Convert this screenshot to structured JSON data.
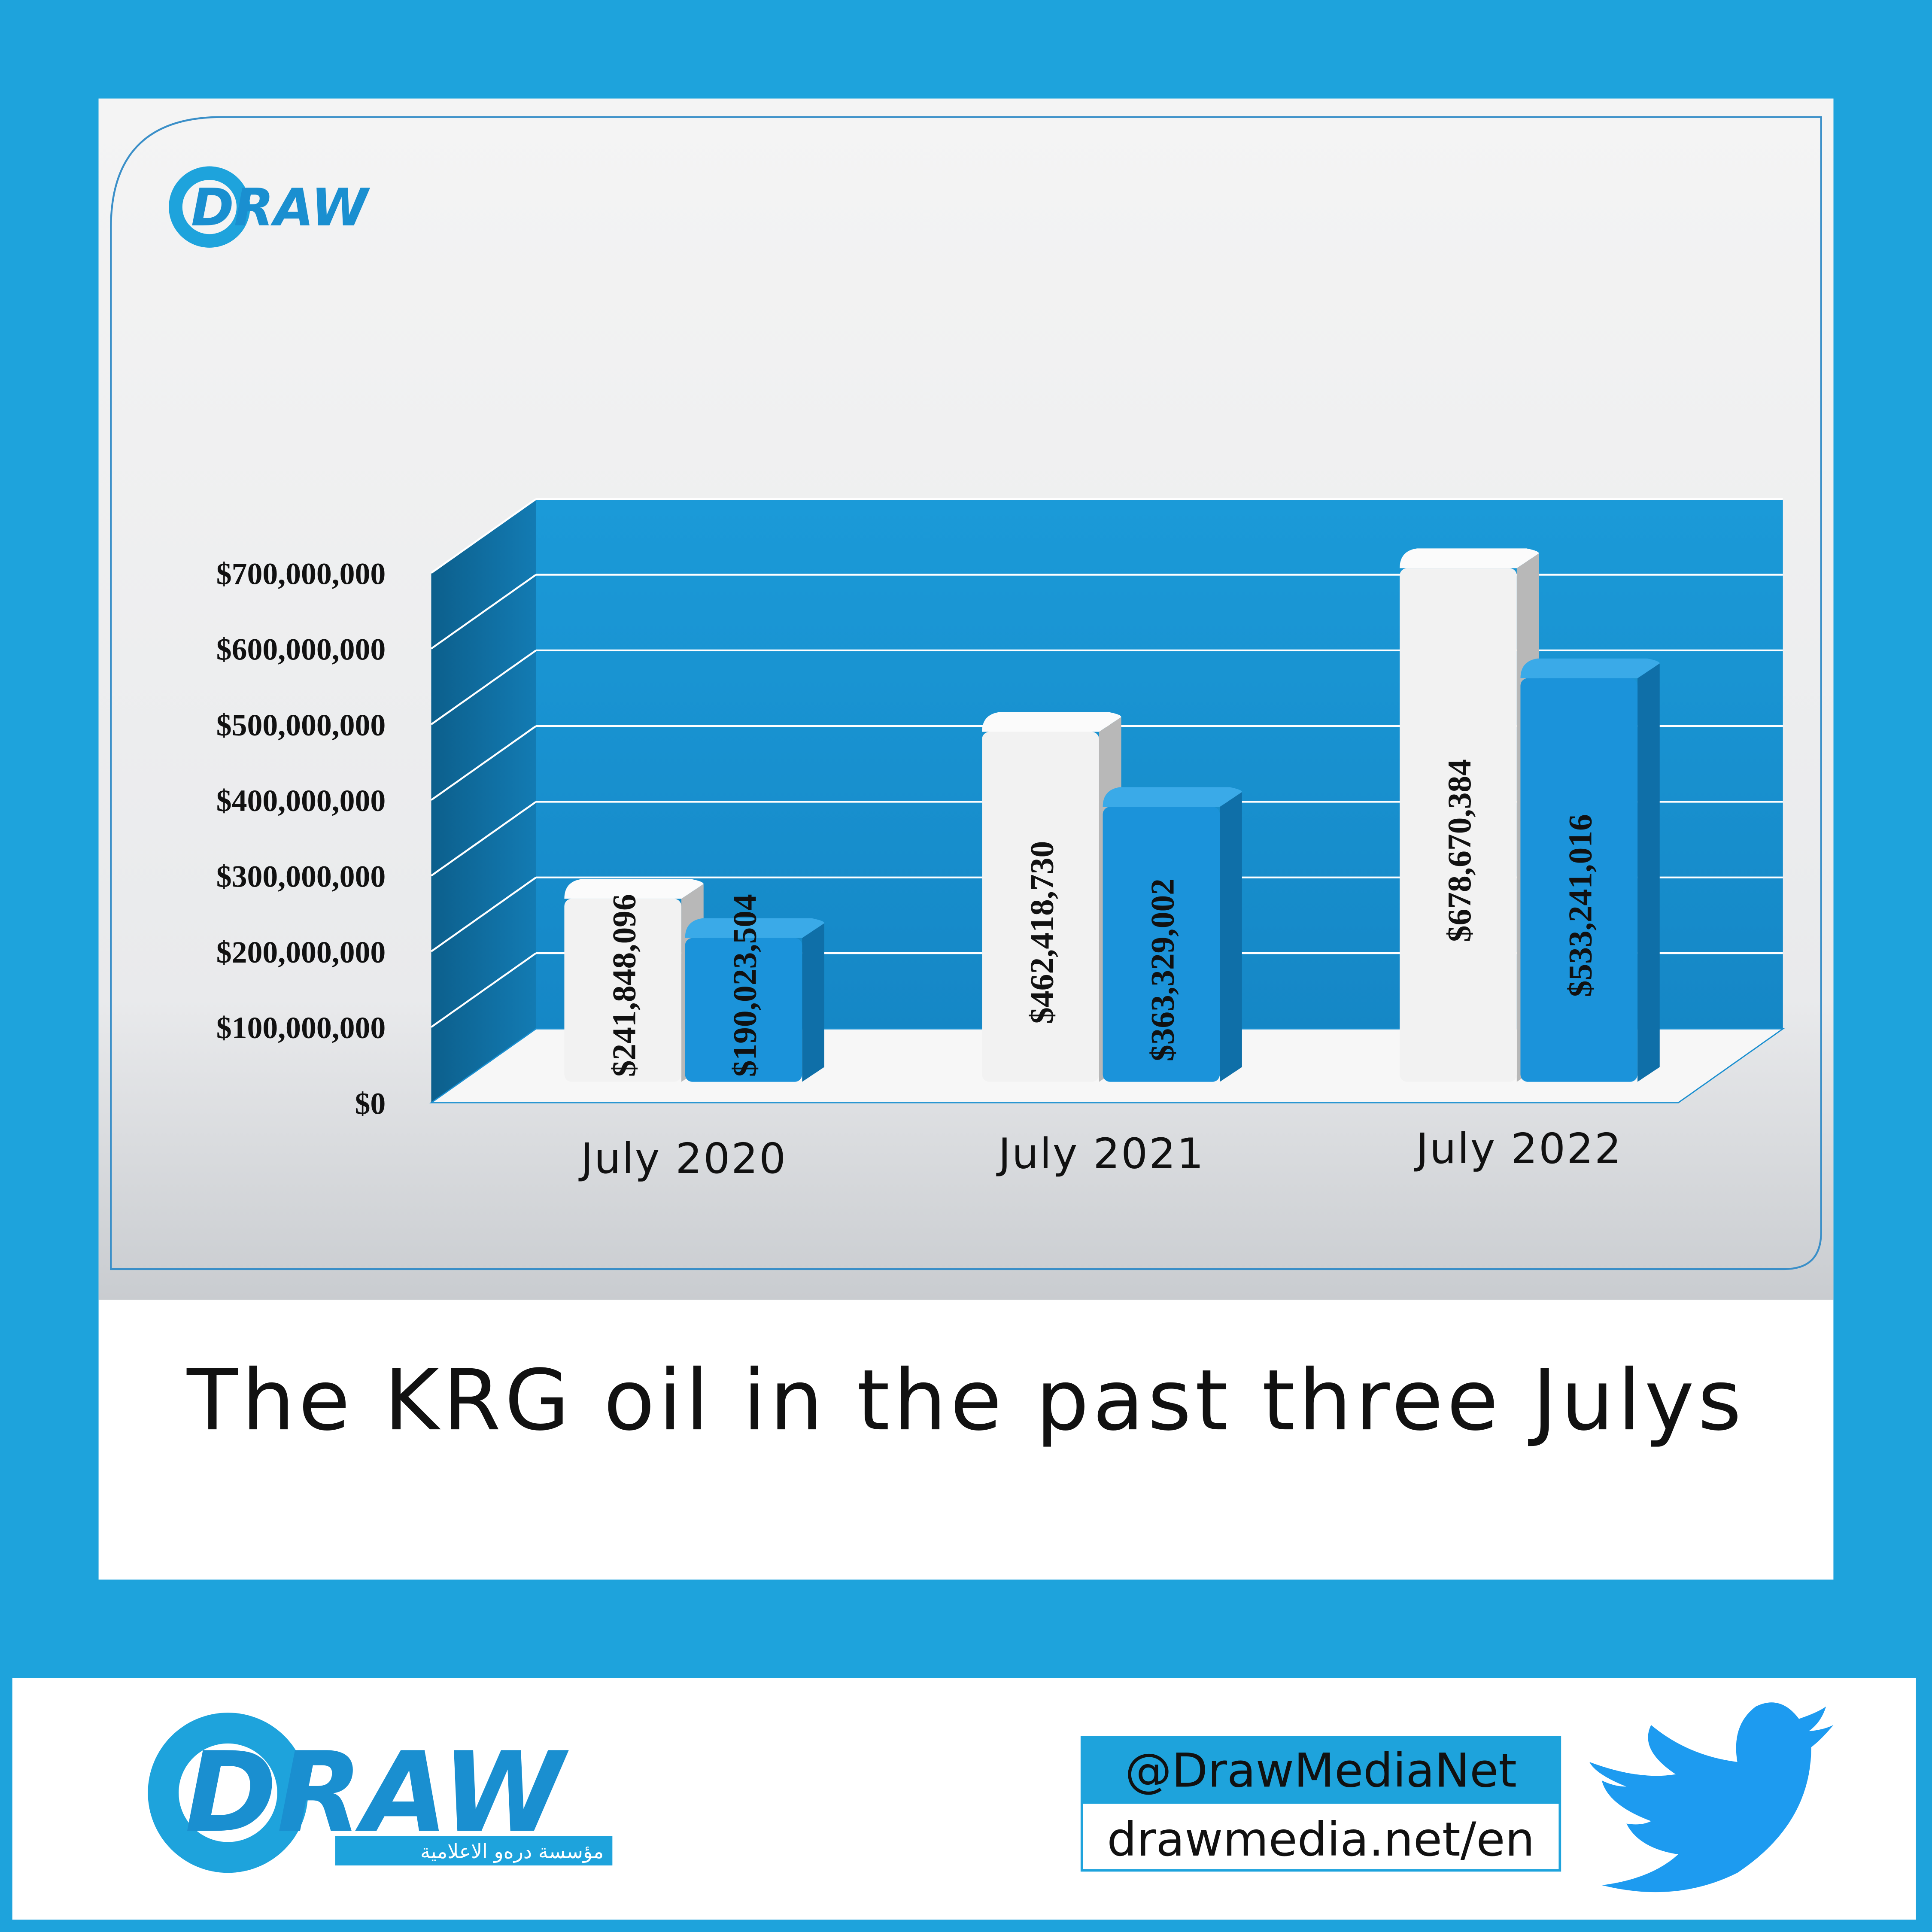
{
  "header": {
    "logo": "DRAW"
  },
  "chart_data": {
    "type": "bar",
    "categories": [
      "July 2020",
      "July 2021",
      "July 2022"
    ],
    "series": [
      {
        "color": "#f2f2f2",
        "values": [
          241848096,
          462418730,
          678670384
        ],
        "value_labels": [
          "$241,848,096",
          "$462,418,730",
          "$678,670,384"
        ]
      },
      {
        "color": "#1b93da",
        "values": [
          190023504,
          363329002,
          533241016
        ],
        "value_labels": [
          "$190,023,504",
          "$363,329,002",
          "$533,241,016"
        ]
      }
    ],
    "ylim": [
      0,
      700000000
    ],
    "yticks": [
      {
        "value": 0,
        "label": "$0"
      },
      {
        "value": 100000000,
        "label": "$100,000,000"
      },
      {
        "value": 200000000,
        "label": "$200,000,000"
      },
      {
        "value": 300000000,
        "label": "$300,000,000"
      },
      {
        "value": 400000000,
        "label": "$400,000,000"
      },
      {
        "value": 500000000,
        "label": "$500,000,000"
      },
      {
        "value": 600000000,
        "label": "$600,000,000"
      },
      {
        "value": 700000000,
        "label": "$700,000,000"
      }
    ],
    "grid": true
  },
  "caption": "The KRG oil in the past three Julys",
  "footer": {
    "logo": "DRAW",
    "logo_subtitle": "مؤسسة دره‌و الاعلامية",
    "twitter": "@DrawMediaNet",
    "website": "drawmedia.net/en"
  }
}
